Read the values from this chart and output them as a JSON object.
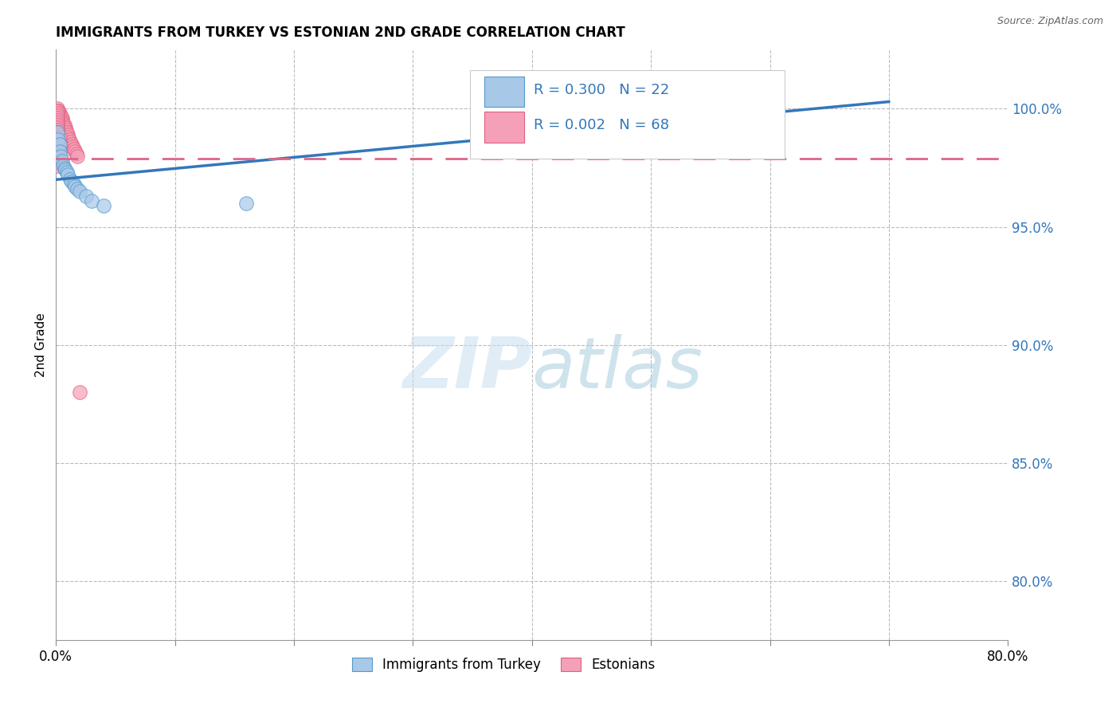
{
  "title": "IMMIGRANTS FROM TURKEY VS ESTONIAN 2ND GRADE CORRELATION CHART",
  "source": "Source: ZipAtlas.com",
  "ylabel": "2nd Grade",
  "ytick_labels": [
    "100.0%",
    "95.0%",
    "90.0%",
    "85.0%",
    "80.0%"
  ],
  "ytick_values": [
    1.0,
    0.95,
    0.9,
    0.85,
    0.8
  ],
  "xlim": [
    0.0,
    0.8
  ],
  "ylim": [
    0.775,
    1.025
  ],
  "legend_blue_r": "0.300",
  "legend_blue_n": "22",
  "legend_pink_r": "0.002",
  "legend_pink_n": "68",
  "blue_color": "#a8c8e8",
  "pink_color": "#f4a0b8",
  "blue_edge_color": "#5599cc",
  "pink_edge_color": "#e06080",
  "blue_line_color": "#3377bb",
  "pink_line_color": "#dd6688",
  "axis_label_color": "#3377bb",
  "watermark_color": "#cce4f5",
  "grid_color": "#bbbbbb",
  "blue_scatter_x": [
    0.001,
    0.002,
    0.003,
    0.003,
    0.004,
    0.005,
    0.006,
    0.007,
    0.008,
    0.009,
    0.01,
    0.012,
    0.013,
    0.015,
    0.016,
    0.018,
    0.02,
    0.025,
    0.03,
    0.04,
    0.16,
    0.6
  ],
  "blue_scatter_y": [
    0.99,
    0.987,
    0.985,
    0.982,
    0.98,
    0.978,
    0.976,
    0.975,
    0.974,
    0.973,
    0.972,
    0.97,
    0.969,
    0.968,
    0.967,
    0.966,
    0.965,
    0.963,
    0.961,
    0.959,
    0.96,
    0.999
  ],
  "pink_scatter_x": [
    0.001,
    0.001,
    0.001,
    0.001,
    0.001,
    0.001,
    0.001,
    0.001,
    0.001,
    0.002,
    0.002,
    0.002,
    0.002,
    0.002,
    0.002,
    0.003,
    0.003,
    0.003,
    0.004,
    0.004,
    0.004,
    0.005,
    0.005,
    0.006,
    0.006,
    0.007,
    0.007,
    0.008,
    0.008,
    0.009,
    0.01,
    0.01,
    0.011,
    0.012,
    0.013,
    0.014,
    0.015,
    0.016,
    0.017,
    0.018,
    0.001,
    0.001,
    0.001,
    0.001,
    0.001,
    0.001,
    0.001,
    0.001,
    0.001,
    0.001,
    0.001,
    0.001,
    0.001,
    0.001,
    0.001,
    0.001,
    0.001,
    0.001,
    0.001,
    0.001,
    0.001,
    0.001,
    0.002,
    0.002,
    0.003,
    0.02,
    0.003,
    0.004
  ],
  "pink_scatter_y": [
    1.0,
    0.999,
    0.998,
    0.997,
    0.996,
    0.995,
    0.994,
    0.993,
    0.992,
    0.999,
    0.998,
    0.997,
    0.996,
    0.995,
    0.994,
    0.998,
    0.996,
    0.994,
    0.997,
    0.996,
    0.995,
    0.996,
    0.995,
    0.994,
    0.993,
    0.993,
    0.992,
    0.992,
    0.991,
    0.99,
    0.989,
    0.988,
    0.987,
    0.986,
    0.985,
    0.984,
    0.983,
    0.982,
    0.981,
    0.98,
    0.999,
    0.998,
    0.997,
    0.996,
    0.995,
    0.994,
    0.993,
    0.992,
    0.991,
    0.99,
    0.989,
    0.988,
    0.987,
    0.986,
    0.985,
    0.984,
    0.983,
    0.982,
    0.981,
    0.98,
    0.978,
    0.976,
    0.985,
    0.983,
    0.982,
    0.88,
    0.988,
    0.985
  ],
  "blue_trendline_x": [
    0.0,
    0.7
  ],
  "blue_trendline_y": [
    0.97,
    1.003
  ],
  "pink_trendline_x": [
    0.0,
    0.8
  ],
  "pink_trendline_y": [
    0.979,
    0.979
  ],
  "legend_label_blue": "Immigrants from Turkey",
  "legend_label_pink": "Estonians"
}
